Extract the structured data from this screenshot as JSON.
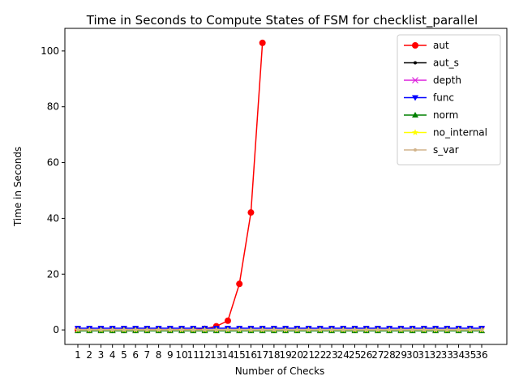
{
  "chart_data": {
    "type": "line",
    "title": "Time in Seconds to Compute States of FSM for checklist_parallel",
    "xlabel": "Number of Checks",
    "ylabel": "Time in Seconds",
    "categories": [
      "1",
      "2",
      "3",
      "4",
      "5",
      "6",
      "7",
      "8",
      "9",
      "10",
      "11",
      "12",
      "13",
      "14",
      "15",
      "16",
      "17",
      "18",
      "19",
      "20",
      "21",
      "22",
      "23",
      "24",
      "25",
      "26",
      "27",
      "28",
      "29",
      "30",
      "31",
      "32",
      "33",
      "34",
      "35",
      "36"
    ],
    "ylim": [
      -5.2,
      108.1
    ],
    "yticks": [
      0,
      20,
      40,
      60,
      80,
      100
    ],
    "legend": "upper right",
    "series": [
      {
        "name": "aut",
        "color": "#ff0000",
        "marker": "circle",
        "values": [
          0.01,
          0.01,
          0.01,
          0.01,
          0.01,
          0.01,
          0.02,
          0.02,
          0.03,
          0.05,
          0.1,
          0.4,
          1.3,
          3.3,
          16.5,
          42.1,
          102.9,
          null,
          null,
          null,
          null,
          null,
          null,
          null,
          null,
          null,
          null,
          null,
          null,
          null,
          null,
          null,
          null,
          null,
          null,
          null
        ]
      },
      {
        "name": "aut_s",
        "color": "#000000",
        "marker": "point",
        "values": [
          0,
          0,
          0,
          0,
          0,
          0,
          0,
          0,
          0,
          0,
          0,
          0,
          0,
          0,
          0,
          0,
          0,
          0,
          0,
          0,
          0,
          0,
          0,
          0,
          0,
          0,
          0,
          0,
          0,
          0,
          0,
          0,
          0,
          0,
          0,
          0
        ]
      },
      {
        "name": "depth",
        "color": "#dd22dd",
        "marker": "x",
        "values": [
          0,
          0,
          0,
          0,
          0,
          0,
          0,
          0,
          0,
          0,
          0,
          0,
          0,
          0,
          0,
          0,
          0,
          0,
          0,
          0,
          0,
          0,
          0,
          0,
          0,
          0,
          0,
          0,
          0,
          0,
          0,
          0,
          0,
          0,
          0,
          0
        ]
      },
      {
        "name": "func",
        "color": "#0000ff",
        "marker": "tri-down",
        "values": [
          0.6,
          0.6,
          0.6,
          0.6,
          0.6,
          0.6,
          0.6,
          0.6,
          0.6,
          0.6,
          0.6,
          0.6,
          0.6,
          0.6,
          0.6,
          0.6,
          0.6,
          0.6,
          0.6,
          0.6,
          0.6,
          0.6,
          0.6,
          0.6,
          0.6,
          0.6,
          0.6,
          0.6,
          0.6,
          0.6,
          0.6,
          0.6,
          0.6,
          0.6,
          0.6,
          0.6
        ]
      },
      {
        "name": "norm",
        "color": "#008000",
        "marker": "tri-up",
        "values": [
          -0.3,
          -0.3,
          -0.3,
          -0.3,
          -0.3,
          -0.3,
          -0.3,
          -0.3,
          -0.3,
          -0.3,
          -0.3,
          -0.3,
          -0.3,
          -0.3,
          -0.3,
          -0.3,
          -0.3,
          -0.3,
          -0.3,
          -0.3,
          -0.3,
          -0.3,
          -0.3,
          -0.3,
          -0.3,
          -0.3,
          -0.3,
          -0.3,
          -0.3,
          -0.3,
          -0.3,
          -0.3,
          -0.3,
          -0.3,
          -0.3,
          -0.3
        ]
      },
      {
        "name": "no_internal",
        "color": "#ffff00",
        "marker": "star",
        "values": [
          0,
          0,
          0,
          0,
          0,
          0,
          0,
          0,
          0,
          0,
          0,
          0,
          0,
          0,
          0,
          0,
          0,
          0,
          0,
          0,
          0,
          0,
          0,
          0,
          0,
          0,
          0,
          0,
          0,
          0,
          0,
          0,
          0,
          0,
          0,
          0
        ]
      },
      {
        "name": "s_var",
        "color": "#d2b48c",
        "marker": "point",
        "values": [
          0,
          0,
          0,
          0,
          0,
          0,
          0,
          0,
          0,
          0,
          0,
          0,
          0,
          0,
          0,
          0,
          0,
          0,
          0,
          0,
          0,
          0,
          0,
          0,
          0,
          0,
          0,
          0,
          0,
          0,
          0,
          0,
          0,
          0,
          0,
          0
        ]
      }
    ]
  }
}
